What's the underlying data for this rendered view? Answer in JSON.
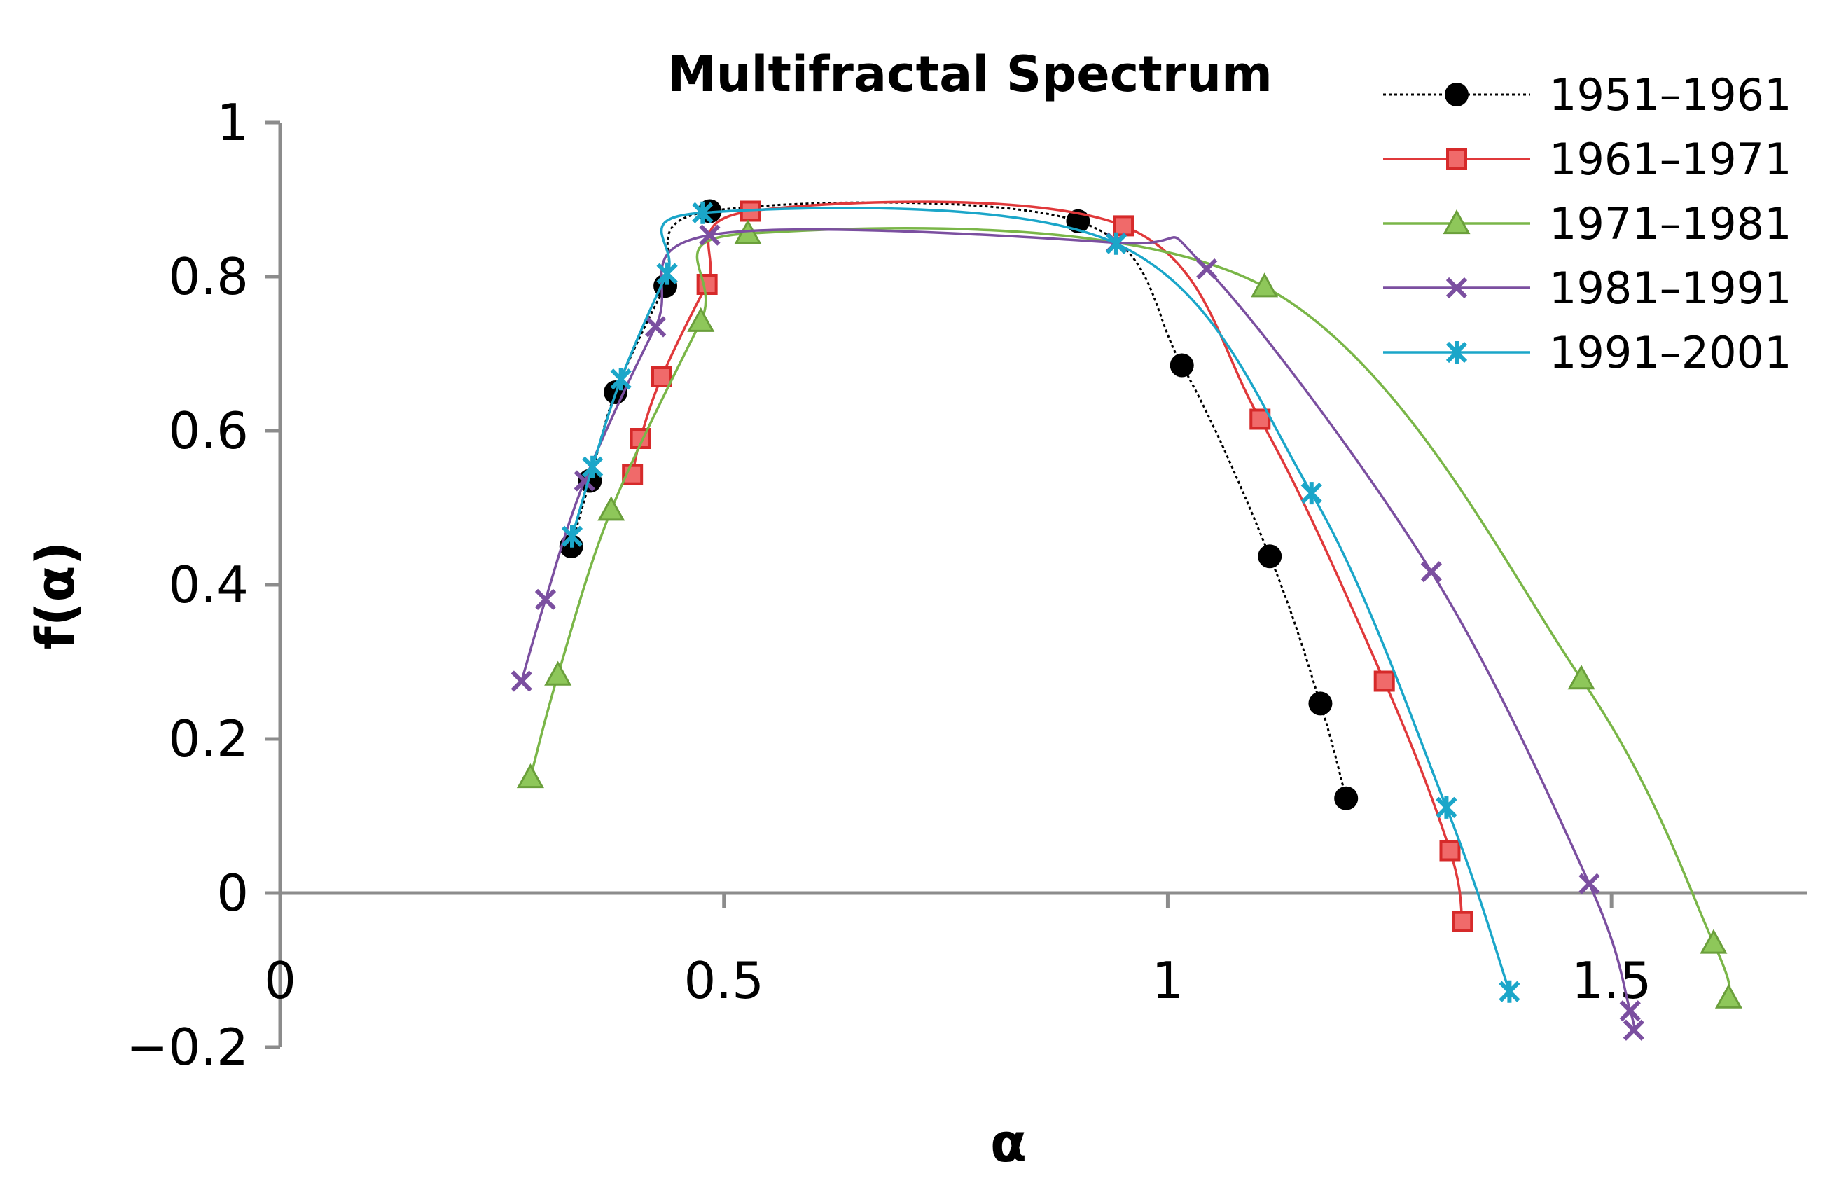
{
  "chart_data": {
    "type": "scatter",
    "title": "Multifractal Spectrum",
    "xlabel": "α",
    "ylabel": "f(α)",
    "xlim": [
      0,
      1.72
    ],
    "ylim": [
      -0.2,
      1.0
    ],
    "x_ticks": [
      "0",
      "0.5",
      "1",
      "1.5"
    ],
    "x_tick_values": [
      0,
      0.5,
      1,
      1.5
    ],
    "y_ticks": [
      "1",
      "0.8",
      "0.6",
      "0.4",
      "0.2",
      "0",
      "-0.2"
    ],
    "y_tick_values": [
      1,
      0.8,
      0.6,
      0.4,
      0.2,
      0,
      -0.2
    ],
    "grid": false,
    "legend_position": "top-right",
    "series": [
      {
        "name": "1951-1961",
        "color": "#000000",
        "marker": "circle",
        "line": "dotted",
        "x": [
          0.328,
          0.349,
          0.378,
          0.434,
          0.484,
          0.899,
          1.016,
          1.115,
          1.172,
          1.201
        ],
        "y": [
          0.45,
          0.535,
          0.65,
          0.788,
          0.885,
          0.872,
          0.685,
          0.437,
          0.246,
          0.123
        ]
      },
      {
        "name": "1961-1971",
        "color": "#e0393b",
        "marker": "square",
        "line": "solid",
        "x": [
          0.397,
          0.406,
          0.43,
          0.481,
          0.53,
          0.95,
          1.104,
          1.244,
          1.318,
          1.332
        ],
        "y": [
          0.543,
          0.59,
          0.67,
          0.79,
          0.885,
          0.866,
          0.615,
          0.275,
          0.055,
          -0.037
        ]
      },
      {
        "name": "1971-1981",
        "color": "#7ab648",
        "marker": "triangle",
        "line": "solid",
        "x": [
          0.282,
          0.313,
          0.373,
          0.474,
          0.527,
          1.109,
          1.466,
          1.615,
          1.632
        ],
        "y": [
          0.15,
          0.283,
          0.497,
          0.742,
          0.856,
          0.787,
          0.278,
          -0.065,
          -0.136
        ]
      },
      {
        "name": "1981-1991",
        "color": "#7b4fa0",
        "marker": "x",
        "line": "solid",
        "x": [
          0.272,
          0.299,
          0.343,
          0.423,
          0.484,
          0.942,
          1.044,
          1.297,
          1.475,
          1.521,
          1.525
        ],
        "y": [
          0.275,
          0.381,
          0.535,
          0.735,
          0.854,
          0.844,
          0.81,
          0.417,
          0.012,
          -0.153,
          -0.178
        ]
      },
      {
        "name": "1991-2001",
        "color": "#1ba6c9",
        "marker": "star",
        "line": "solid",
        "x": [
          0.329,
          0.352,
          0.384,
          0.436,
          0.476,
          0.942,
          1.162,
          1.314,
          1.385
        ],
        "y": [
          0.463,
          0.553,
          0.667,
          0.804,
          0.883,
          0.843,
          0.519,
          0.111,
          -0.128
        ]
      }
    ]
  }
}
